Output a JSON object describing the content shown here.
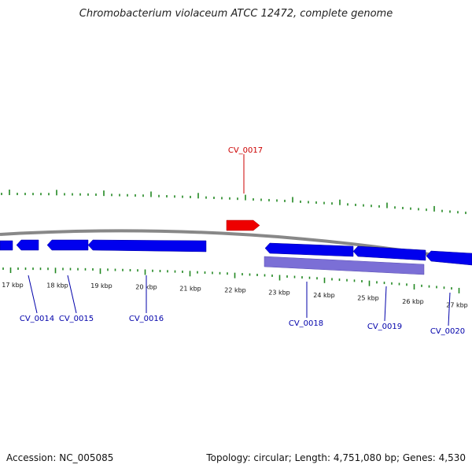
{
  "title": "Chromobacterium violaceum ATCC 12472, complete genome",
  "footer": {
    "accession": "Accession: NC_005085",
    "summary": "Topology: circular; Length: 4,751,080 bp; Genes: 4,530"
  },
  "colors": {
    "forward_gene": "#ee0000",
    "reverse_gene": "#0000ee",
    "reverse_gene_light": "#7b6fd6",
    "tick": "#228822",
    "backbone": "#888888",
    "forward_label": "#cc0000",
    "reverse_label": "#0000aa"
  },
  "tick_labels": [
    "17 kbp",
    "18 kbp",
    "19 kbp",
    "20 kbp",
    "21 kbp",
    "22 kbp",
    "23 kbp",
    "24 kbp",
    "25 kbp",
    "26 kbp",
    "27 kbp"
  ],
  "genes": [
    {
      "label": "CV_0014",
      "strand": "reverse"
    },
    {
      "label": "CV_0015",
      "strand": "reverse"
    },
    {
      "label": "CV_0016",
      "strand": "reverse"
    },
    {
      "label": "CV_0017",
      "strand": "forward"
    },
    {
      "label": "CV_0018",
      "strand": "reverse"
    },
    {
      "label": "CV_0019",
      "strand": "reverse"
    },
    {
      "label": "CV_0020",
      "strand": "reverse"
    }
  ]
}
